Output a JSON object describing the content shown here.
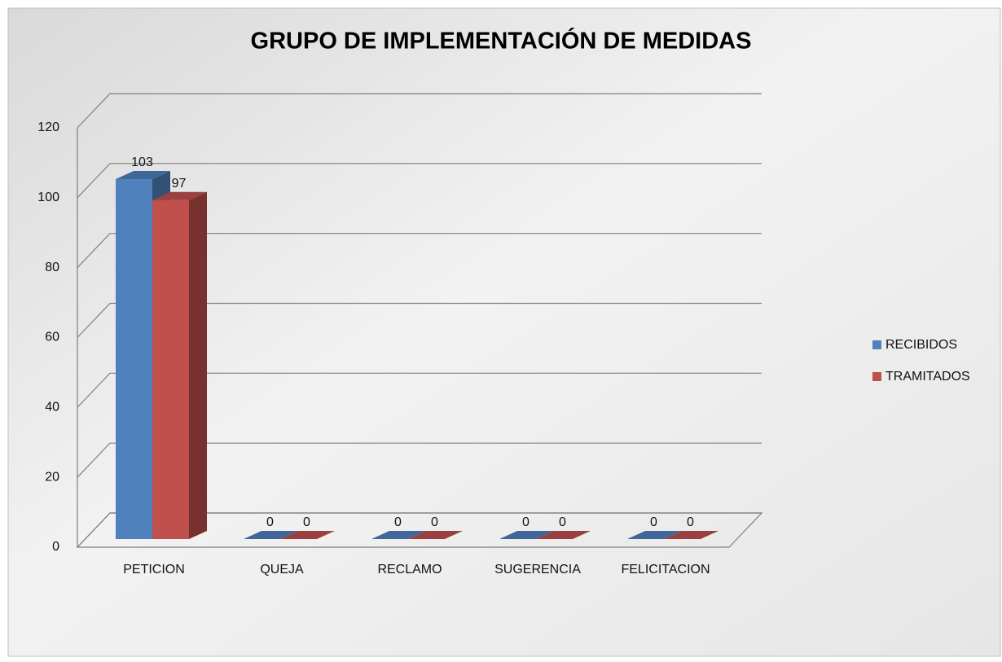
{
  "chart_data": {
    "type": "bar3d",
    "title": "GRUPO DE IMPLEMENTACIÓN DE MEDIDAS",
    "categories": [
      "PETICION",
      "QUEJA",
      "RECLAMO",
      "SUGERENCIA",
      "FELICITACION"
    ],
    "series": [
      {
        "name": "RECIBIDOS",
        "color": "#4f81bd",
        "values": [
          103,
          0,
          0,
          0,
          0
        ]
      },
      {
        "name": "TRAMITADOS",
        "color": "#c0504d",
        "values": [
          97,
          0,
          0,
          0,
          0
        ]
      }
    ],
    "ylim": [
      0,
      120
    ],
    "yticks": [
      0,
      20,
      40,
      60,
      80,
      100,
      120
    ],
    "grid": true,
    "legend": "right"
  }
}
